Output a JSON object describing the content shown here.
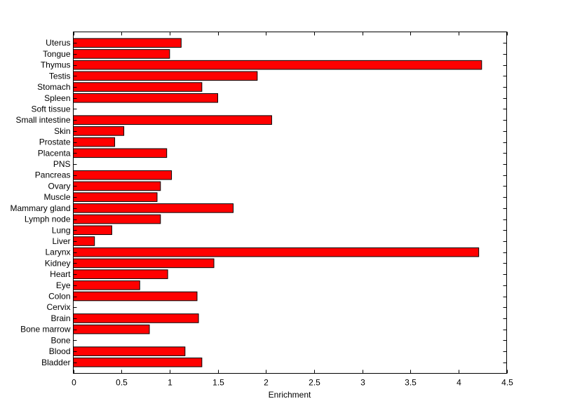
{
  "chart_data": {
    "type": "bar",
    "orientation": "horizontal",
    "title": "",
    "xlabel": "Enrichment",
    "ylabel": "",
    "xlim": [
      0,
      4.5
    ],
    "xticks": [
      0,
      0.5,
      1,
      1.5,
      2,
      2.5,
      3,
      3.5,
      4,
      4.5
    ],
    "xtick_labels": [
      "0",
      "0.5",
      "1",
      "1.5",
      "2",
      "2.5",
      "3",
      "3.5",
      "4",
      "4.5"
    ],
    "grid": false,
    "bar_color": "#ff0000",
    "edge_color": "#000000",
    "categories": [
      "Bladder",
      "Blood",
      "Bone",
      "Bone marrow",
      "Brain",
      "Cervix",
      "Colon",
      "Eye",
      "Heart",
      "Kidney",
      "Larynx",
      "Liver",
      "Lung",
      "Lymph node",
      "Mammary gland",
      "Muscle",
      "Ovary",
      "Pancreas",
      "PNS",
      "Placenta",
      "Prostate",
      "Skin",
      "Small intestine",
      "Soft tissue",
      "Spleen",
      "Stomach",
      "Testis",
      "Thymus",
      "Tongue",
      "Uterus"
    ],
    "values": [
      1.335,
      1.16,
      0,
      0.79,
      1.3,
      0,
      1.285,
      0.69,
      0.98,
      1.46,
      4.21,
      0.22,
      0.4,
      0.905,
      1.66,
      0.87,
      0.905,
      1.02,
      0,
      0.97,
      0.43,
      0.525,
      2.06,
      0,
      1.5,
      1.335,
      1.91,
      4.24,
      1.0,
      1.12
    ]
  }
}
